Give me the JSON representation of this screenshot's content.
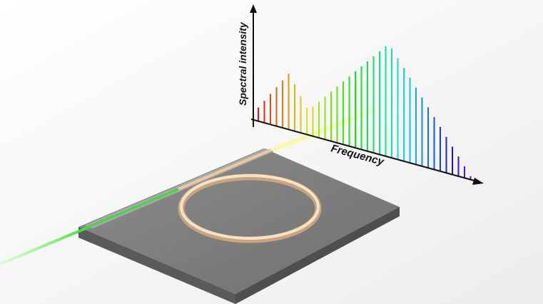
{
  "spectrum": {
    "y_axis_label": "Spectral intensity",
    "x_axis_label": "Frequency"
  }
}
